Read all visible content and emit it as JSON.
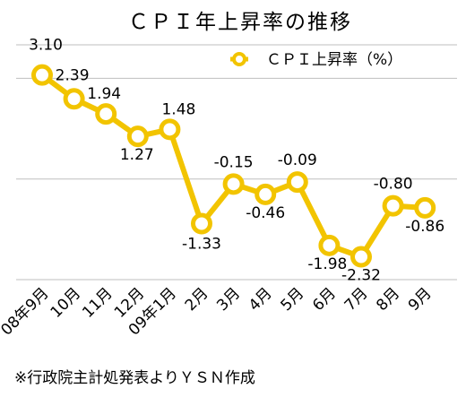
{
  "chart_data": {
    "type": "line",
    "title": "ＣＰＩ年上昇率の推移",
    "categories": [
      "08年9月",
      "10月",
      "11月",
      "12月",
      "09年1月",
      "2月",
      "3月",
      "4月",
      "5月",
      "6月",
      "7月",
      "8月",
      "9月"
    ],
    "series": [
      {
        "name": "ＣＰＩ上昇率（%）",
        "values": [
          3.1,
          2.39,
          1.94,
          1.27,
          1.48,
          -1.33,
          -0.15,
          -0.46,
          -0.09,
          -1.98,
          -2.32,
          -0.8,
          -0.86
        ],
        "labels": [
          "3.10",
          "2.39",
          "1.94",
          "1.27",
          "1.48",
          "-1.33",
          "-0.15",
          "-0.46",
          "-0.09",
          "-1.98",
          "-2.32",
          "-0.80",
          "-0.86"
        ]
      }
    ],
    "ylim": [
      -3,
      4
    ],
    "grid": true,
    "legend_position": "top-right",
    "series_color": "#F2C400",
    "grid_color": "#bfbfbf"
  },
  "footnote": "※行政院主計処発表よりＹＳＮ作成"
}
